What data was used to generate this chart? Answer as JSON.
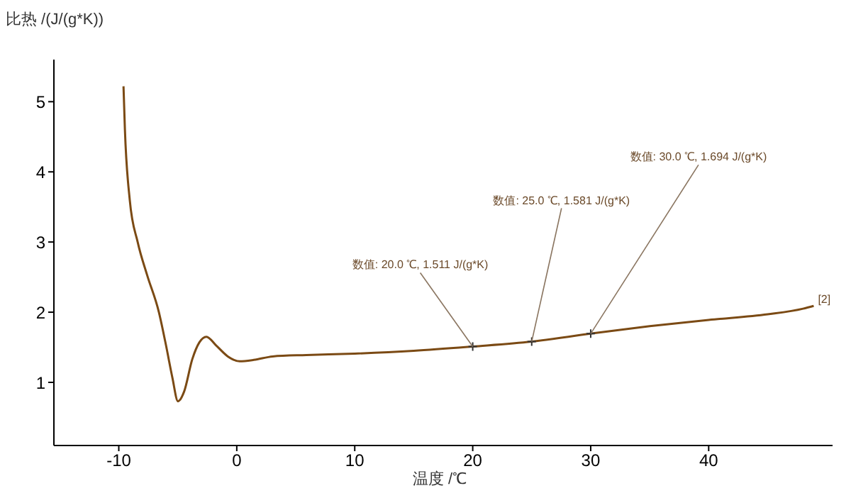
{
  "chart_data": {
    "type": "line",
    "xlabel": "温度 /℃",
    "ylabel": "比热 /(J/(g*K))",
    "x": [
      -9.6,
      -9.48,
      -9.07,
      -8.4,
      -7.6,
      -6.6,
      -6.0,
      -5.46,
      -4.98,
      -4.46,
      -3.77,
      -3.17,
      -2.57,
      -1.77,
      -0.76,
      0.24,
      1.45,
      3.05,
      5.9,
      10,
      15,
      20,
      25,
      30,
      35,
      40,
      45,
      48,
      48.9
    ],
    "series": [
      {
        "color": "#7b4a14",
        "values": [
          5.22,
          4.6,
          3.6,
          3.0,
          2.53,
          2.0,
          1.53,
          1.07,
          0.73,
          0.87,
          1.33,
          1.57,
          1.65,
          1.53,
          1.37,
          1.3,
          1.32,
          1.37,
          1.39,
          1.41,
          1.45,
          1.511,
          1.581,
          1.694,
          1.8,
          1.89,
          1.97,
          2.05,
          2.09
        ]
      }
    ],
    "xlim": [
      -15.5,
      50.5
    ],
    "ylim": [
      0.1,
      5.6
    ],
    "xticks": [
      -10,
      0,
      10,
      20,
      30,
      40
    ],
    "yticks": [
      1,
      2,
      3,
      4,
      5
    ],
    "grid": false,
    "legend": false,
    "marker": "none",
    "line_style": "solid",
    "annotations": [
      {
        "text": "数值: 20.0 ℃, 1.511 J/(g*K)",
        "x": 20,
        "y": 1.511
      },
      {
        "text": "数值: 25.0 ℃, 1.581 J/(g*K)",
        "x": 25,
        "y": 1.581
      },
      {
        "text": "数值: 30.0 ℃, 1.694 J/(g*K)",
        "x": 30,
        "y": 1.694
      },
      {
        "text": "[2]",
        "x": 48.9,
        "y": 2.09
      }
    ]
  }
}
